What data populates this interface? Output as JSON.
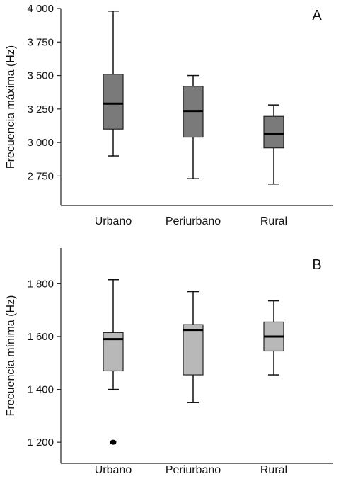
{
  "chart_data": [
    {
      "type": "box",
      "panel_label": "A",
      "ylabel": "Frecuencia máxima (Hz)",
      "ylim": [
        2530,
        4000
      ],
      "yticks": [
        2750,
        3000,
        3250,
        3500,
        3750,
        4000
      ],
      "ytick_labels": [
        "2 750",
        "3 000",
        "3 250",
        "3 500",
        "3 750",
        "4 000"
      ],
      "categories": [
        "Urbano",
        "Periurbano",
        "Rural"
      ],
      "box_color": "#7a7a7a",
      "boxes": [
        {
          "min": 2900,
          "q1": 3100,
          "median": 3290,
          "q3": 3510,
          "max": 3980
        },
        {
          "min": 2730,
          "q1": 3040,
          "median": 3235,
          "q3": 3420,
          "max": 3500
        },
        {
          "min": 2690,
          "q1": 2960,
          "median": 3065,
          "q3": 3195,
          "max": 3280
        }
      ],
      "outliers": [
        [],
        [],
        []
      ]
    },
    {
      "type": "box",
      "panel_label": "B",
      "ylabel": "Frecuencia mínima (Hz)",
      "ylim": [
        1120,
        1935
      ],
      "yticks": [
        1200,
        1400,
        1600,
        1800
      ],
      "ytick_labels": [
        "1 200",
        "1 400",
        "1 600",
        "1 800"
      ],
      "categories": [
        "Urbano",
        "Periurbano",
        "Rural"
      ],
      "box_color": "#b8b8b8",
      "boxes": [
        {
          "min": 1400,
          "q1": 1470,
          "median": 1590,
          "q3": 1615,
          "max": 1815
        },
        {
          "min": 1350,
          "q1": 1455,
          "median": 1625,
          "q3": 1645,
          "max": 1770
        },
        {
          "min": 1455,
          "q1": 1545,
          "median": 1600,
          "q3": 1655,
          "max": 1735
        }
      ],
      "outliers": [
        [
          1200
        ],
        [],
        []
      ]
    }
  ]
}
